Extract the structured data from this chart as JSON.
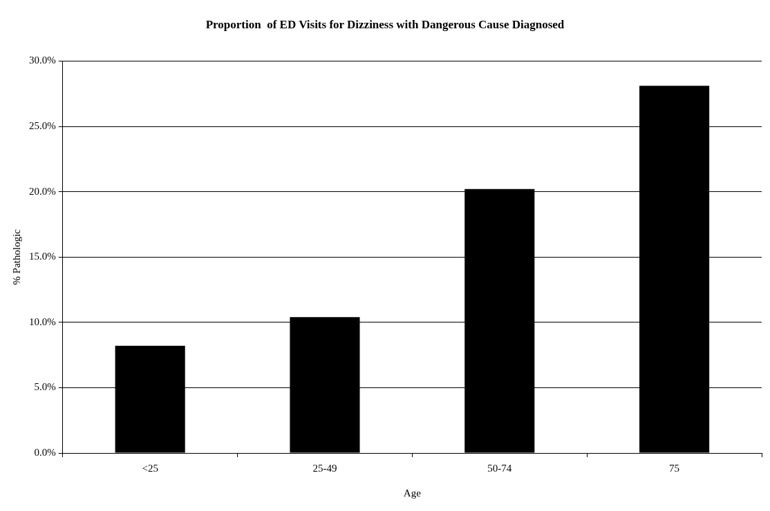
{
  "chart_data": {
    "type": "bar",
    "title": "Proportion  of ED Visits for Dizziness with Dangerous Cause Diagnosed",
    "xlabel": "Age",
    "ylabel": "% Pathologic",
    "categories": [
      "<25",
      "25-49",
      "50-74",
      "75"
    ],
    "values": [
      8.2,
      10.4,
      20.2,
      28.1
    ],
    "color": "#000000",
    "ylim": [
      0,
      30
    ],
    "yticks": [
      {
        "value": 0,
        "label": "0.0%"
      },
      {
        "value": 5,
        "label": "5.0%"
      },
      {
        "value": 10,
        "label": "10.0%"
      },
      {
        "value": 15,
        "label": "15.0%"
      },
      {
        "value": 20,
        "label": "20.0%"
      },
      {
        "value": 25,
        "label": "25.0%"
      },
      {
        "value": 30,
        "label": "30.0%"
      }
    ],
    "grid": "y",
    "legend": false
  }
}
